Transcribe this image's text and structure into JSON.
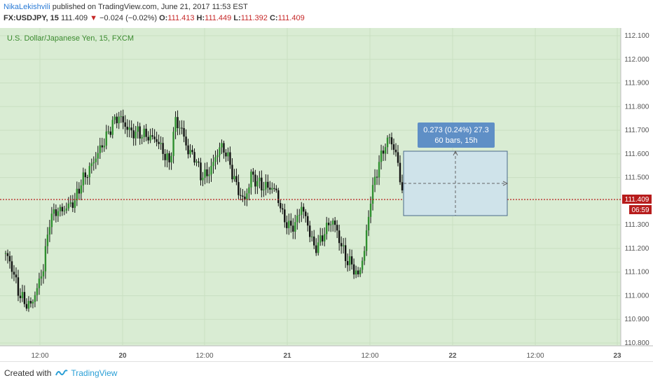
{
  "header": {
    "author": "NikaLekishvili",
    "published": "published on TradingView.com, June 21, 2017 11:53 EST",
    "symbol": "FX:USDJPY, 15",
    "last": "111.409",
    "change_arrow": "▼",
    "change": "−0.024 (−0.02%)",
    "o_label": "O:",
    "o_value": "111.413",
    "h_label": "H:",
    "h_value": "111.449",
    "l_label": "L:",
    "l_value": "111.392",
    "c_label": "C:",
    "c_value": "111.409"
  },
  "chart": {
    "instrument_label": "U.S. Dollar/Japanese Yen, 15, FXCM",
    "bg_color": "#d9ecd3",
    "up_color": "#2f8f2f",
    "down_color": "#111111",
    "price_line_color": "#b71c1c",
    "price_ticks": [
      "112.100",
      "112.000",
      "111.900",
      "111.800",
      "111.700",
      "111.600",
      "111.500",
      "111.409",
      "111.300",
      "111.200",
      "111.100",
      "111.000",
      "110.900",
      "110.800"
    ],
    "time_ticks": [
      "12:00",
      "20",
      "12:00",
      "21",
      "12:00",
      "22",
      "12:00",
      "23"
    ],
    "current_price_badge": "111.409",
    "countdown_badge": "06:59",
    "measure": {
      "line1": "0.273 (0.24%) 27.3",
      "line2": "60 bars, 15h"
    }
  },
  "chart_data": {
    "type": "candlestick",
    "title": "U.S. Dollar/Japanese Yen, 15, FXCM",
    "ylim": [
      110.78,
      112.13
    ],
    "last_price": 111.409,
    "y_ticks": [
      112.1,
      112.0,
      111.9,
      111.8,
      111.7,
      111.6,
      111.5,
      111.3,
      111.2,
      111.1,
      111.0,
      110.9,
      110.8
    ],
    "x_ticks": [
      "12:00",
      "20",
      "12:00",
      "21",
      "12:00",
      "22",
      "12:00",
      "23"
    ],
    "close_series": [
      111.18,
      111.12,
      111.02,
      110.97,
      110.96,
      111.03,
      111.12,
      111.32,
      111.36,
      111.36,
      111.38,
      111.4,
      111.48,
      111.52,
      111.57,
      111.62,
      111.67,
      111.73,
      111.76,
      111.72,
      111.69,
      111.69,
      111.68,
      111.67,
      111.66,
      111.61,
      111.56,
      111.74,
      111.7,
      111.61,
      111.59,
      111.51,
      111.51,
      111.56,
      111.63,
      111.61,
      111.52,
      111.44,
      111.4,
      111.51,
      111.48,
      111.46,
      111.46,
      111.44,
      111.34,
      111.29,
      111.3,
      111.38,
      111.3,
      111.2,
      111.23,
      111.29,
      111.32,
      111.24,
      111.16,
      111.13,
      111.08,
      111.19,
      111.41,
      111.53,
      111.62,
      111.67,
      111.6,
      111.45
    ],
    "measure": {
      "delta": 0.273,
      "percent": 0.24,
      "pips": 27.3,
      "bars": 60,
      "duration": "15h"
    }
  }
}
